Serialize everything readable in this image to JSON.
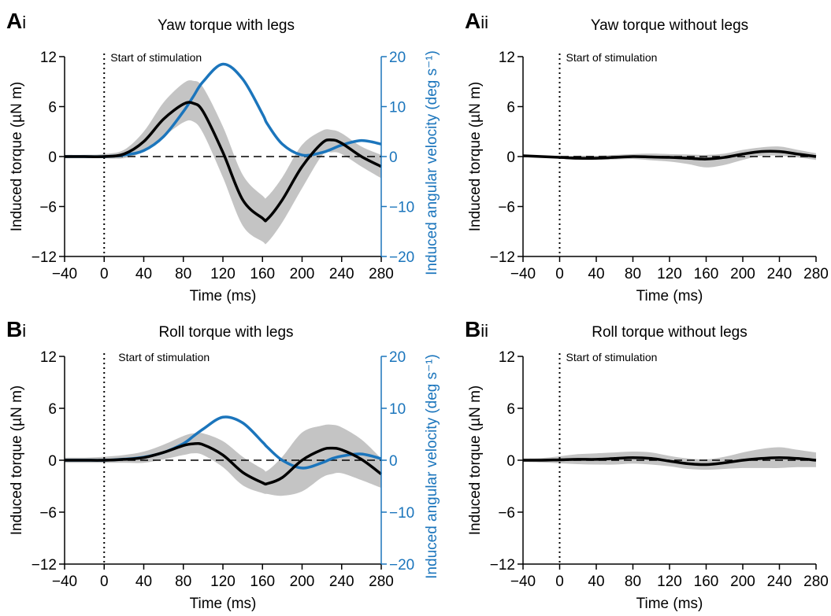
{
  "chart_data": [
    {
      "id": "Ai",
      "type": "line",
      "panel_letter": "A",
      "panel_roman": "i",
      "title": "Yaw torque with legs",
      "xlabel": "Time (ms)",
      "ylabel": "Induced torque (µN m)",
      "y2label": "Induced angular velocity (deg s⁻¹)",
      "xlim": [
        -40,
        280
      ],
      "ylim": [
        -12,
        12
      ],
      "y2lim": [
        -20,
        20
      ],
      "xticks": [
        -40,
        0,
        40,
        80,
        120,
        160,
        200,
        240,
        280
      ],
      "xtick_labels": [
        "−40",
        "0",
        "40",
        "80",
        "120",
        "160",
        "200",
        "240",
        "280"
      ],
      "yticks": [
        -12,
        -6,
        0,
        6,
        12
      ],
      "ytick_labels": [
        "−12",
        "−6",
        "0",
        "6",
        "12"
      ],
      "y2ticks": [
        -20,
        -10,
        0,
        10,
        20
      ],
      "y2tick_labels": [
        "−20",
        "−10",
        "0",
        "10",
        "20"
      ],
      "annotation": "Start of stimulation",
      "stim_time": 0,
      "zero_line": true,
      "x": [
        -40,
        -20,
        0,
        20,
        40,
        60,
        80,
        90,
        100,
        120,
        140,
        160,
        165,
        180,
        200,
        220,
        230,
        240,
        260,
        280
      ],
      "torque_mean": [
        0,
        0,
        0,
        0.3,
        1.8,
        4.5,
        6.3,
        6.4,
        5.4,
        0.5,
        -5.2,
        -7.4,
        -7.5,
        -5.2,
        -1.2,
        1.6,
        2.0,
        1.6,
        0,
        -1.2
      ],
      "torque_upper": [
        0.2,
        0.2,
        0.3,
        0.8,
        3,
        6.5,
        8.8,
        9.1,
        8.3,
        3.6,
        -2.2,
        -4.7,
        -4.8,
        -2.5,
        1.4,
        3.1,
        3.2,
        2.8,
        1.2,
        0.2
      ],
      "torque_lower": [
        -0.2,
        -0.2,
        -0.2,
        -0.2,
        0.6,
        2.4,
        4.1,
        4.2,
        2.8,
        -2.5,
        -8.3,
        -10.2,
        -10.3,
        -7.9,
        -3.8,
        0.1,
        0.5,
        0.3,
        -1.2,
        -2.6
      ],
      "velocity": [
        0,
        0,
        0,
        0.3,
        1.2,
        4,
        9,
        12,
        15,
        18.5,
        15.5,
        8.5,
        6.5,
        2.5,
        0.3,
        0.8,
        1.5,
        2.3,
        3.2,
        2.5
      ]
    },
    {
      "id": "Aii",
      "type": "line",
      "panel_letter": "A",
      "panel_roman": "ii",
      "title": "Yaw torque without legs",
      "xlabel": "Time (ms)",
      "ylabel": "Induced torque (µN m)",
      "xlim": [
        -40,
        280
      ],
      "ylim": [
        -12,
        12
      ],
      "xticks": [
        -40,
        0,
        40,
        80,
        120,
        160,
        200,
        240,
        280
      ],
      "xtick_labels": [
        "−40",
        "0",
        "40",
        "80",
        "120",
        "160",
        "200",
        "240",
        "280"
      ],
      "yticks": [
        -12,
        -6,
        0,
        6,
        12
      ],
      "ytick_labels": [
        "−12",
        "−6",
        "0",
        "6",
        "12"
      ],
      "annotation": "Start of stimulation",
      "stim_time": 0,
      "zero_line": true,
      "x": [
        -40,
        -20,
        0,
        20,
        40,
        60,
        80,
        100,
        120,
        140,
        160,
        180,
        200,
        220,
        240,
        260,
        280
      ],
      "torque_mean": [
        0.1,
        0,
        -0.1,
        -0.2,
        -0.2,
        -0.1,
        0,
        -0.05,
        -0.1,
        -0.2,
        -0.3,
        -0.1,
        0.3,
        0.6,
        0.6,
        0.3,
        0
      ],
      "torque_upper": [
        0.2,
        0.1,
        0.05,
        0.1,
        0.1,
        0.2,
        0.3,
        0.35,
        0.3,
        0.25,
        0.2,
        0.35,
        0.8,
        1.1,
        1.2,
        0.8,
        0.4
      ],
      "torque_lower": [
        0,
        -0.1,
        -0.25,
        -0.35,
        -0.4,
        -0.35,
        -0.3,
        -0.45,
        -0.6,
        -0.9,
        -1.3,
        -1.0,
        -0.4,
        0.1,
        0.1,
        -0.1,
        -0.4
      ]
    },
    {
      "id": "Bi",
      "type": "line",
      "panel_letter": "B",
      "panel_roman": "i",
      "title": "Roll torque with legs",
      "xlabel": "Time (ms)",
      "ylabel": "Induced torque (µN m)",
      "y2label": "Induced angular velocity (deg s⁻¹)",
      "xlim": [
        -40,
        280
      ],
      "ylim": [
        -12,
        12
      ],
      "y2lim": [
        -20,
        20
      ],
      "xticks": [
        -40,
        0,
        40,
        80,
        120,
        160,
        200,
        240,
        280
      ],
      "xtick_labels": [
        "−40",
        "0",
        "40",
        "80",
        "120",
        "160",
        "200",
        "240",
        "280"
      ],
      "yticks": [
        -12,
        -6,
        0,
        6,
        12
      ],
      "ytick_labels": [
        "−12",
        "−6",
        "0",
        "6",
        "12"
      ],
      "y2ticks": [
        -20,
        -10,
        0,
        10,
        20
      ],
      "y2tick_labels": [
        "−20",
        "−10",
        "0",
        "10",
        "20"
      ],
      "annotation": "Start of stimulation",
      "stim_time": 0,
      "zero_line": true,
      "x": [
        -40,
        -20,
        0,
        20,
        40,
        60,
        80,
        90,
        100,
        120,
        140,
        160,
        165,
        180,
        200,
        220,
        230,
        240,
        260,
        280
      ],
      "torque_mean": [
        0,
        0,
        0,
        0.1,
        0.3,
        0.9,
        1.7,
        1.9,
        1.8,
        0.6,
        -1.4,
        -2.6,
        -2.7,
        -2.0,
        0,
        1.2,
        1.4,
        1.2,
        0.1,
        -1.6
      ],
      "torque_upper": [
        0.3,
        0.3,
        0.4,
        0.6,
        1,
        1.8,
        2.8,
        3.1,
        3.1,
        2.2,
        0.4,
        -1.0,
        -1.2,
        0.4,
        3.2,
        4.0,
        4.1,
        3.8,
        2.4,
        0.2
      ],
      "torque_lower": [
        -0.3,
        -0.3,
        -0.3,
        -0.3,
        -0.3,
        0.1,
        0.6,
        0.8,
        0.6,
        -0.8,
        -2.9,
        -3.8,
        -3.9,
        -4.1,
        -3.6,
        -2.0,
        -1.6,
        -1.5,
        -2.3,
        -3.2
      ],
      "velocity": [
        0,
        0,
        0,
        0.2,
        0.6,
        1.5,
        3.2,
        4.6,
        6,
        8.3,
        7.2,
        3.5,
        2.5,
        0,
        -1.5,
        -0.5,
        0.3,
        0.8,
        1.2,
        0.3
      ]
    },
    {
      "id": "Bii",
      "type": "line",
      "panel_letter": "B",
      "panel_roman": "ii",
      "title": "Roll torque without legs",
      "xlabel": "Time (ms)",
      "ylabel": "Induced torque (µN m)",
      "xlim": [
        -40,
        280
      ],
      "ylim": [
        -12,
        12
      ],
      "xticks": [
        -40,
        0,
        40,
        80,
        120,
        160,
        200,
        240,
        280
      ],
      "xtick_labels": [
        "−40",
        "0",
        "40",
        "80",
        "120",
        "160",
        "200",
        "240",
        "280"
      ],
      "yticks": [
        -12,
        -6,
        0,
        6,
        12
      ],
      "ytick_labels": [
        "−12",
        "−6",
        "0",
        "6",
        "12"
      ],
      "annotation": "Start of stimulation",
      "stim_time": 0,
      "zero_line": true,
      "x": [
        -40,
        -20,
        0,
        20,
        40,
        60,
        80,
        100,
        120,
        140,
        160,
        180,
        200,
        220,
        240,
        260,
        280
      ],
      "torque_mean": [
        0,
        0,
        0.05,
        0.1,
        0.1,
        0.2,
        0.3,
        0.2,
        -0.1,
        -0.4,
        -0.5,
        -0.3,
        0,
        0.2,
        0.3,
        0.2,
        0
      ],
      "torque_upper": [
        0.2,
        0.25,
        0.45,
        0.7,
        0.8,
        0.9,
        1.0,
        0.9,
        0.5,
        0.2,
        0.1,
        0.4,
        0.9,
        1.3,
        1.5,
        1.2,
        0.9
      ],
      "torque_lower": [
        -0.2,
        -0.25,
        -0.35,
        -0.45,
        -0.5,
        -0.5,
        -0.4,
        -0.5,
        -0.7,
        -1.0,
        -1.1,
        -1.0,
        -0.9,
        -0.9,
        -0.9,
        -0.8,
        -0.8
      ]
    }
  ],
  "colors": {
    "torque": "#000000",
    "band": "#c4c4c4",
    "velocity": "#1b75bc",
    "axis": "#000000"
  }
}
